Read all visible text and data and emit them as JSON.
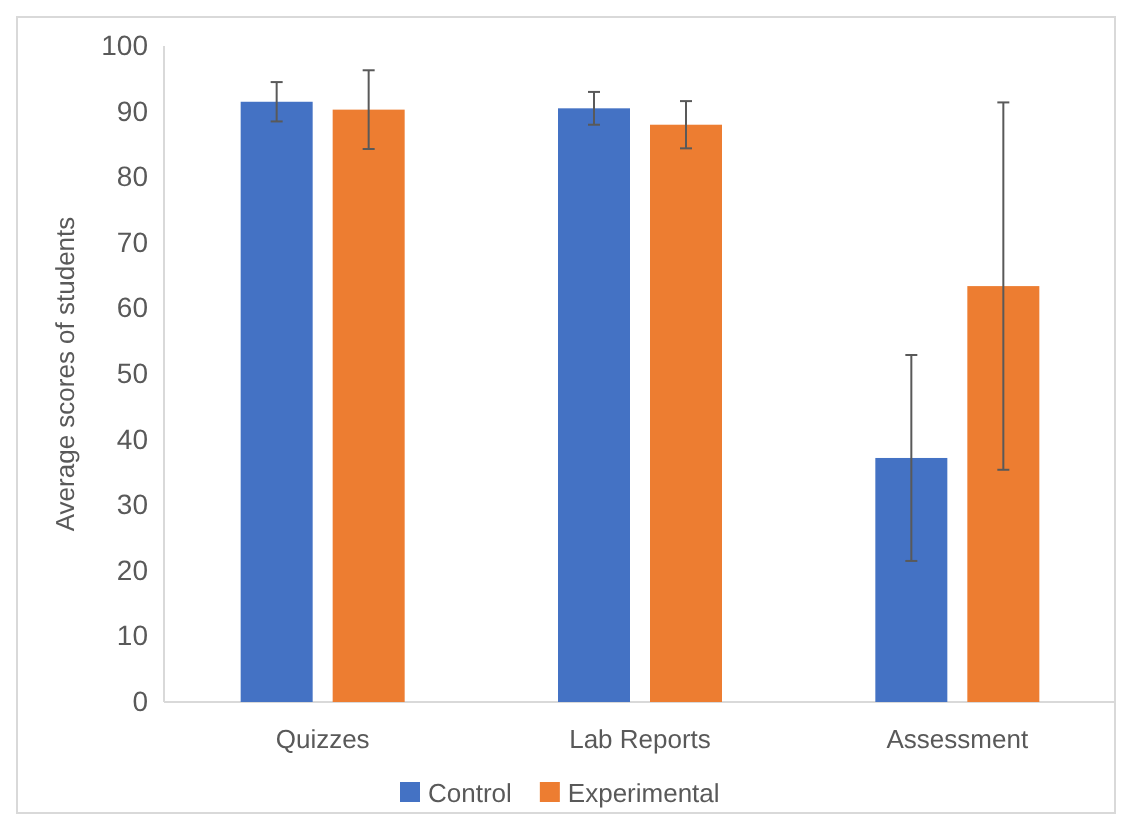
{
  "chart_data": {
    "type": "bar",
    "ylabel": "Average scores of students",
    "categories": [
      "Quizzes",
      "Lab Reports",
      "Assessment"
    ],
    "series": [
      {
        "name": "Control",
        "color": "#4472c4",
        "values": [
          91.5,
          90.5,
          37.2
        ],
        "errors": [
          3,
          2.5,
          15.7
        ]
      },
      {
        "name": "Experimental",
        "color": "#ed7d31",
        "values": [
          90.3,
          88,
          63.4
        ],
        "errors": [
          6,
          3.6,
          28
        ]
      }
    ],
    "ylim": [
      0,
      100
    ],
    "yticks": [
      0,
      10,
      20,
      30,
      40,
      50,
      60,
      70,
      80,
      90,
      100
    ],
    "grid": false,
    "legend": "bottom"
  }
}
